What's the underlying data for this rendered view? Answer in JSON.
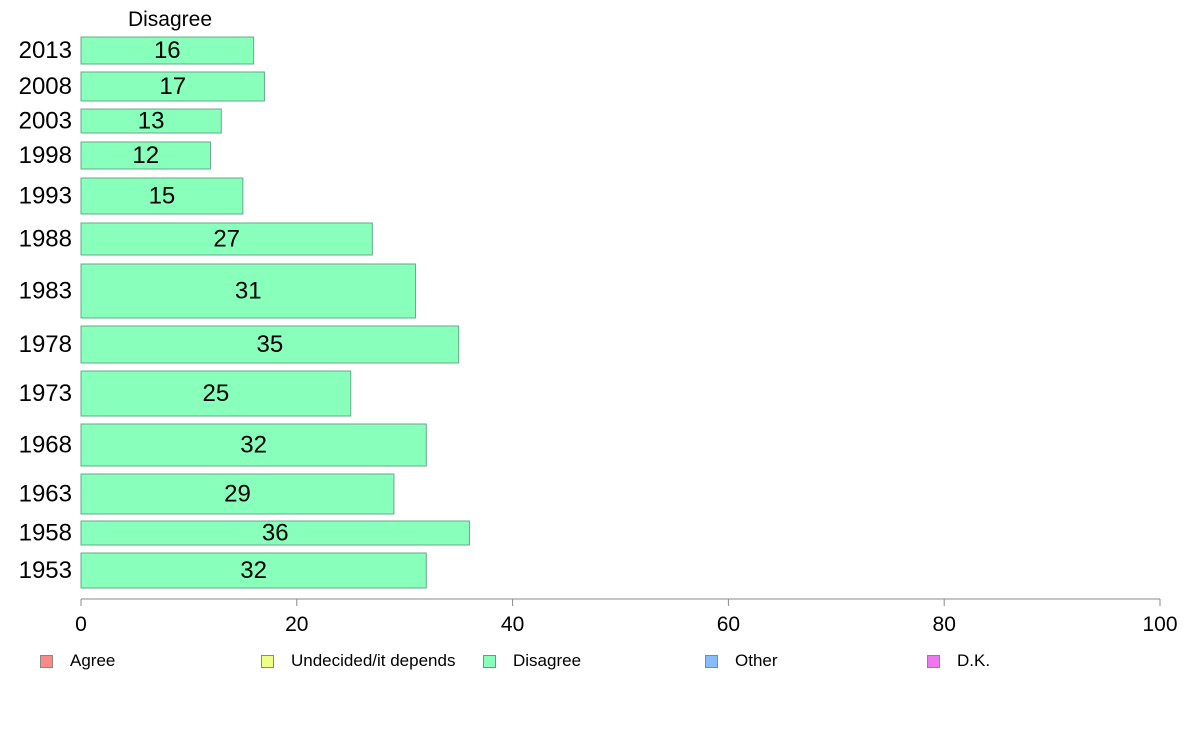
{
  "chart_data": {
    "type": "bar",
    "orientation": "horizontal",
    "panel_title": "Disagree",
    "categories": [
      "2013",
      "2008",
      "2003",
      "1998",
      "1993",
      "1988",
      "1983",
      "1978",
      "1973",
      "1968",
      "1963",
      "1958",
      "1953"
    ],
    "series": [
      {
        "name": "Disagree",
        "values": [
          16,
          17,
          13,
          12,
          15,
          27,
          31,
          35,
          25,
          32,
          29,
          36,
          32
        ],
        "color": "#88ffbb"
      }
    ],
    "data_labels": [
      "16",
      "17",
      "13",
      "12",
      "15",
      "27",
      "31",
      "35",
      "25",
      "32",
      "29",
      "36",
      "32"
    ],
    "xlim": [
      0,
      100
    ],
    "x_ticks": [
      "0",
      "20",
      "40",
      "60",
      "80",
      "100"
    ],
    "grid": false,
    "legend_position": "bottom",
    "legend": [
      {
        "label": "Agree",
        "color": "#ff8888"
      },
      {
        "label": "Undecided/it depends",
        "color": "#eeff88"
      },
      {
        "label": "Disagree",
        "color": "#88ffbb"
      },
      {
        "label": "Other",
        "color": "#88bbff"
      },
      {
        "label": "D.K.",
        "color": "#ee77ee"
      }
    ]
  }
}
